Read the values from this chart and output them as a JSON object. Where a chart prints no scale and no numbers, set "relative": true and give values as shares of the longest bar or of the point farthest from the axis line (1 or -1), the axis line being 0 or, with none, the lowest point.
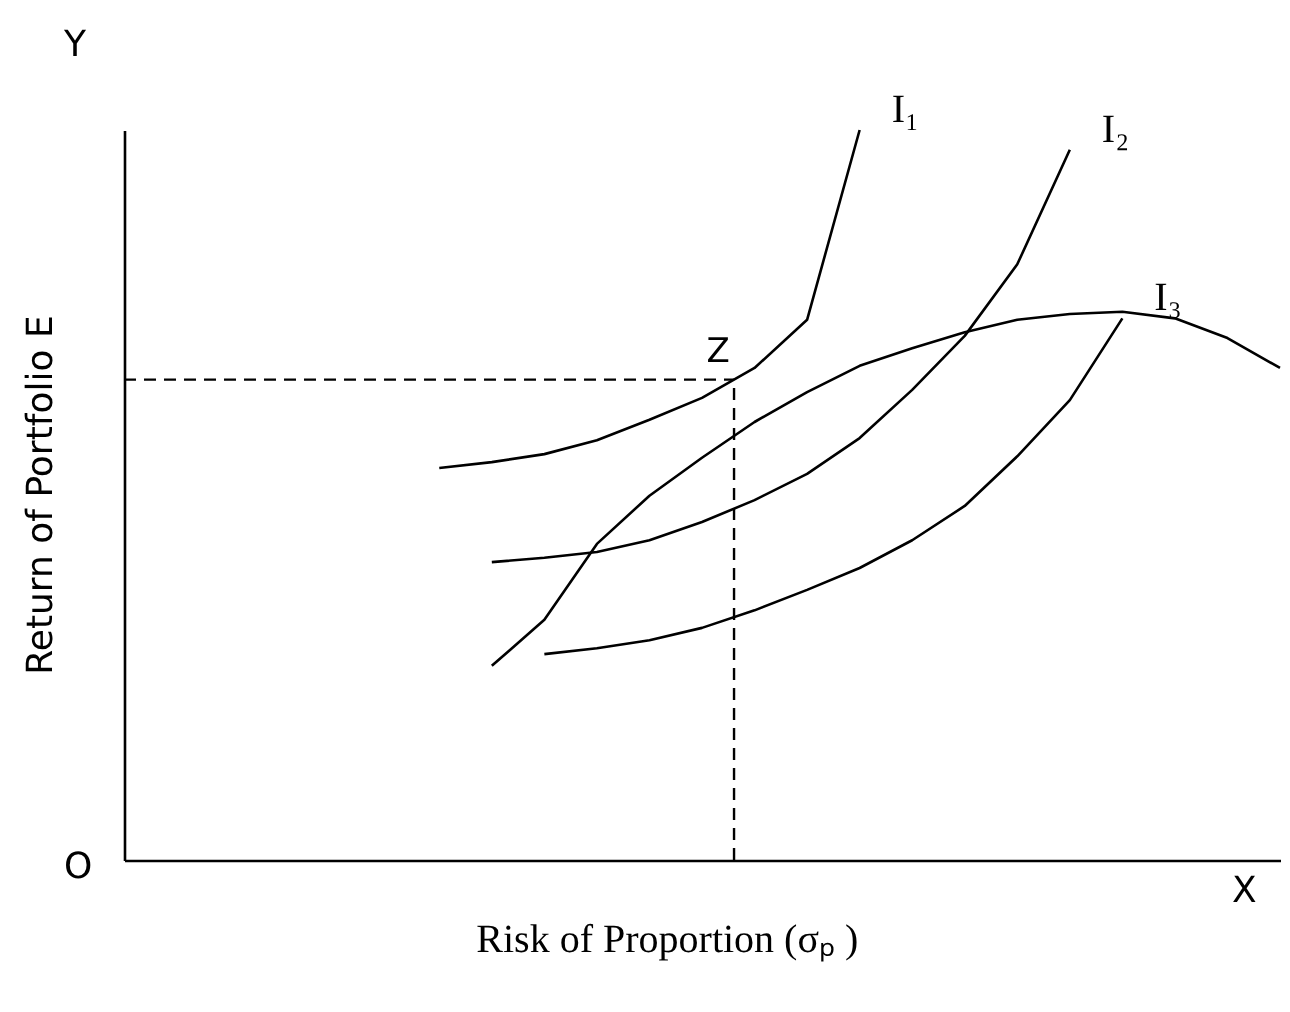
{
  "chart_data": {
    "type": "line",
    "relative": true,
    "xlabel": "Risk of Proportion (σₚ )",
    "ylabel": "Return of Portfolio E",
    "categories": [
      null,
      null,
      null,
      null,
      null,
      null,
      null,
      null,
      null,
      null,
      null,
      null,
      null,
      null,
      null,
      null,
      null,
      null,
      null,
      null,
      null,
      null,
      null
    ],
    "annotations": [
      "Y",
      "X",
      "O",
      {
        "text": "Z",
        "y": 0.658
      }
    ],
    "series": [
      {
        "name": "I₁",
        "color": "#000000",
        "values": [
          null,
          null,
          null,
          null,
          null,
          null,
          0.537,
          0.545,
          0.556,
          0.575,
          0.603,
          0.633,
          0.674,
          0.74,
          1.0,
          null,
          null,
          null,
          null,
          null,
          null,
          null,
          null
        ]
      },
      {
        "name": "I₂",
        "color": "#000000",
        "values": [
          null,
          null,
          null,
          null,
          null,
          null,
          null,
          0.408,
          0.414,
          0.422,
          0.438,
          0.463,
          0.493,
          0.529,
          0.578,
          0.644,
          0.718,
          0.816,
          0.973,
          null,
          null,
          null,
          null
        ]
      },
      {
        "name": "I₃",
        "color": "#000000",
        "values": [
          null,
          null,
          null,
          null,
          null,
          null,
          null,
          null,
          0.282,
          0.29,
          0.301,
          0.318,
          0.342,
          0.37,
          0.4,
          0.438,
          0.485,
          0.553,
          0.63,
          0.742,
          null,
          null,
          null
        ]
      },
      {
        "color": "#000000",
        "values": [
          null,
          null,
          null,
          null,
          null,
          null,
          null,
          0.266,
          0.329,
          0.433,
          0.499,
          0.551,
          0.6,
          0.641,
          0.677,
          0.701,
          0.723,
          0.74,
          0.748,
          0.751,
          0.742,
          0.715,
          0.674
        ]
      }
    ],
    "ref_lines": [
      {
        "axis": "y",
        "value": 0.658,
        "line_style": "dashed"
      }
    ],
    "grid": false,
    "tick_labels": false,
    "marker": "none",
    "line_style": "solid"
  }
}
